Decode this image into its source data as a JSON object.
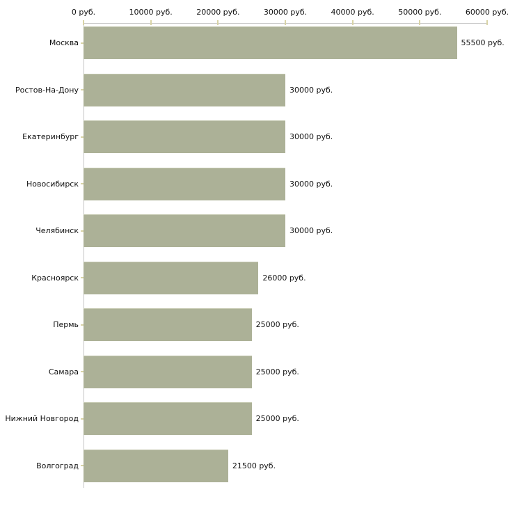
{
  "chart_data": {
    "type": "bar",
    "orientation": "horizontal",
    "title": "",
    "xlabel": "",
    "ylabel": "",
    "unit": "руб.",
    "xlim": [
      0,
      60000
    ],
    "grid": false,
    "axis_position": "top",
    "legend": null,
    "categories": [
      "Москва",
      "Ростов-На-Дону",
      "Екатеринбург",
      "Новосибирск",
      "Челябинск",
      "Красноярск",
      "Пермь",
      "Самара",
      "Нижний Новгород",
      "Волгоград"
    ],
    "values": [
      55500,
      30000,
      30000,
      30000,
      30000,
      26000,
      25000,
      25000,
      25000,
      21500
    ],
    "value_labels": [
      "55500 руб.",
      "30000 руб.",
      "30000 руб.",
      "30000 руб.",
      "30000 руб.",
      "26000 руб.",
      "25000 руб.",
      "25000 руб.",
      "25000 руб.",
      "21500 руб."
    ],
    "x_ticks": [
      0,
      10000,
      20000,
      30000,
      40000,
      50000,
      60000
    ],
    "x_tick_labels": [
      "0 руб.",
      "10000 руб.",
      "20000 руб.",
      "30000 руб.",
      "40000 руб.",
      "50000 руб.",
      "60000 руб."
    ],
    "colors": {
      "bar": "#acb197",
      "bar_top_edge": "#c2c6ad",
      "axis_line": "#c4c4c4",
      "tick_mark": "#d9d4a7",
      "text": "#111111",
      "background": "#ffffff"
    }
  }
}
